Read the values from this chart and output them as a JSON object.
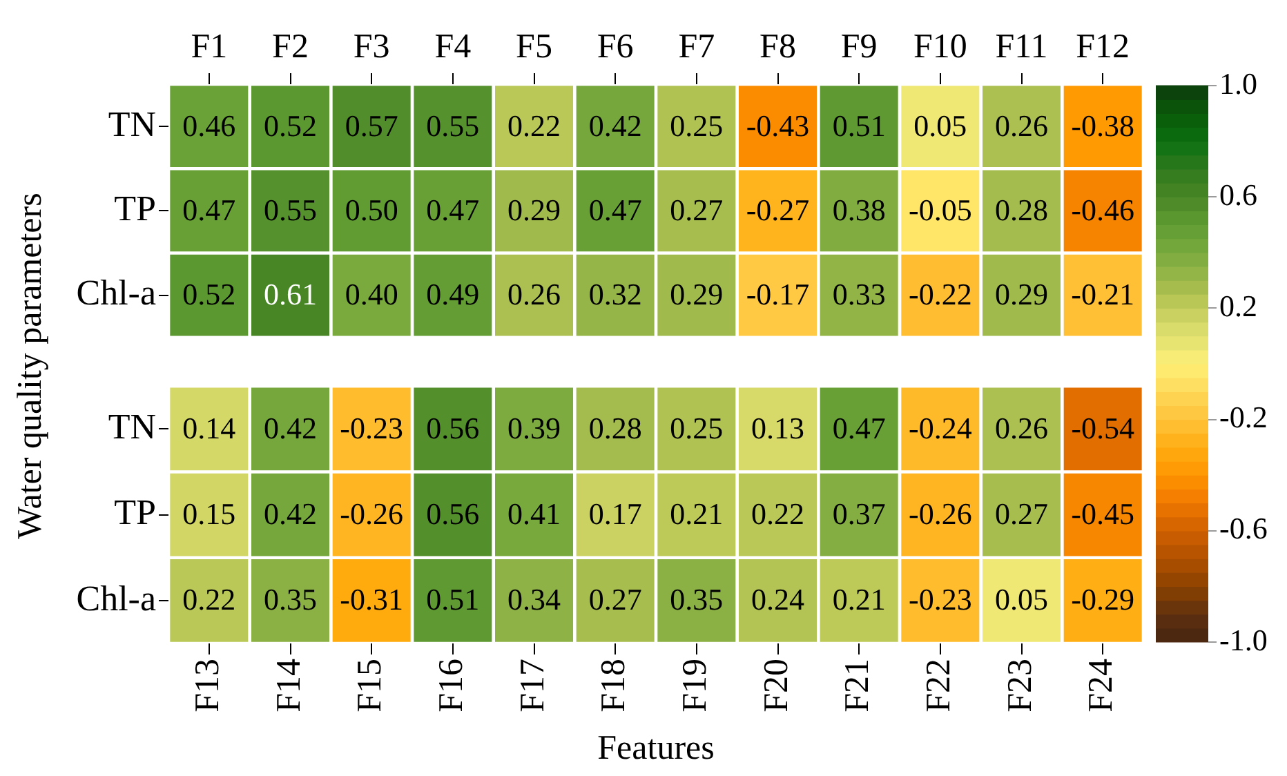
{
  "chart_data": [
    {
      "type": "heatmap",
      "ylabel": "Water quality parameters",
      "categories": [
        "F1",
        "F2",
        "F3",
        "F4",
        "F5",
        "F6",
        "F7",
        "F8",
        "F9",
        "F10",
        "F11",
        "F12"
      ],
      "y_categories": [
        "TN",
        "TP",
        "Chl-a"
      ],
      "cells": [
        [
          0.46,
          0.52,
          0.57,
          0.55,
          0.22,
          0.42,
          0.25,
          -0.43,
          0.51,
          0.05,
          0.26,
          -0.38
        ],
        [
          0.47,
          0.55,
          0.5,
          0.47,
          0.29,
          0.47,
          0.27,
          -0.27,
          0.38,
          -0.05,
          0.28,
          -0.46
        ],
        [
          0.52,
          0.61,
          0.4,
          0.49,
          0.26,
          0.32,
          0.29,
          -0.17,
          0.33,
          -0.22,
          0.29,
          -0.21
        ]
      ],
      "cell_labels": [
        [
          "0.46",
          "0.52",
          "0.57",
          "0.55",
          "0.22",
          "0.42",
          "0.25",
          "-0.43",
          "0.51",
          "0.05",
          "0.26",
          "-0.38"
        ],
        [
          "0.47",
          "0.55",
          "0.50",
          "0.47",
          "0.29",
          "0.47",
          "0.27",
          "-0.27",
          "0.38",
          "-0.05",
          "0.28",
          "-0.46"
        ],
        [
          "0.52",
          "0.61",
          "0.40",
          "0.49",
          "0.26",
          "0.32",
          "0.29",
          "-0.17",
          "0.33",
          "-0.22",
          "0.29",
          "-0.21"
        ]
      ],
      "clim": [
        -1,
        1
      ],
      "cticks": [
        {
          "value": -1,
          "label": "-1.0"
        },
        -0.6,
        -0.2,
        0.2,
        0.6,
        {
          "value": 1,
          "label": "1.0"
        }
      ]
    },
    {
      "type": "heatmap",
      "xlabel": "Features",
      "categories": [
        "F13",
        "F14",
        "F15",
        "F16",
        "F17",
        "F18",
        "F19",
        "F20",
        "F21",
        "F22",
        "F23",
        "F24"
      ],
      "y_categories": [
        "TN",
        "TP",
        "Chl-a"
      ],
      "cells": [
        [
          0.14,
          0.42,
          -0.23,
          0.56,
          0.39,
          0.28,
          0.25,
          0.13,
          0.47,
          -0.24,
          0.26,
          -0.54
        ],
        [
          0.15,
          0.42,
          -0.26,
          0.56,
          0.41,
          0.17,
          0.21,
          0.22,
          0.37,
          -0.26,
          0.27,
          -0.45
        ],
        [
          0.22,
          0.35,
          -0.31,
          0.51,
          0.34,
          0.27,
          0.35,
          0.24,
          0.21,
          -0.23,
          0.05,
          -0.29
        ]
      ],
      "cell_labels": [
        [
          "0.14",
          "0.42",
          "-0.23",
          "0.56",
          "0.39",
          "0.28",
          "0.25",
          "0.13",
          "0.47",
          "-0.24",
          "0.26",
          "-0.54"
        ],
        [
          "0.15",
          "0.42",
          "-0.26",
          "0.56",
          "0.41",
          "0.17",
          "0.21",
          "0.22",
          "0.37",
          "-0.26",
          "0.27",
          "-0.45"
        ],
        [
          "0.22",
          "0.35",
          "-0.31",
          "0.51",
          "0.34",
          "0.27",
          "0.35",
          "0.24",
          "0.21",
          "-0.23",
          "0.05",
          "-0.29"
        ]
      ]
    }
  ]
}
